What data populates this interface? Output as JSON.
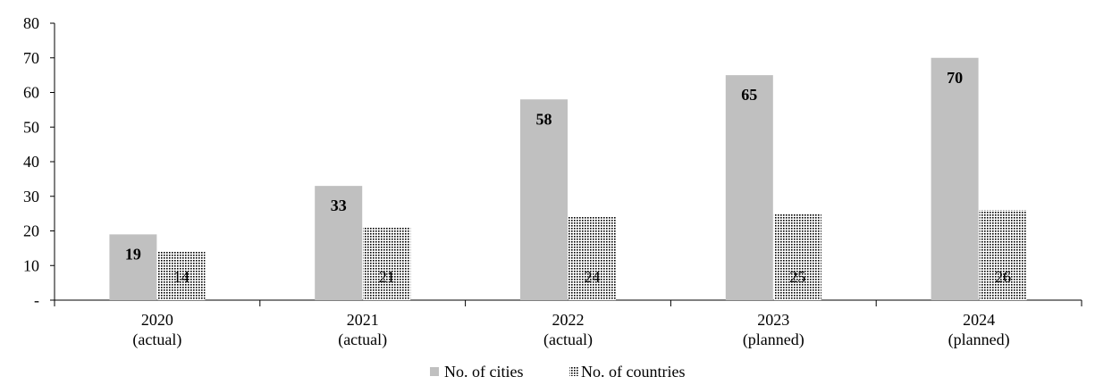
{
  "chart_data": {
    "type": "bar",
    "categories": [
      [
        "2020",
        "(actual)"
      ],
      [
        "2021",
        "(actual)"
      ],
      [
        "2022",
        "(actual)"
      ],
      [
        "2023",
        "(planned)"
      ],
      [
        "2024",
        "(planned)"
      ]
    ],
    "series": [
      {
        "name": "No. of cities",
        "values": [
          19,
          33,
          58,
          65,
          70
        ],
        "color": "#c0c0c0",
        "fill": "solid",
        "label_style": "bold"
      },
      {
        "name": "No. of countries",
        "values": [
          14,
          21,
          24,
          25,
          26
        ],
        "color": "#000000",
        "fill": "dotted",
        "label_style": "normal"
      }
    ],
    "y_ticks": [
      "-",
      "10",
      "20",
      "30",
      "40",
      "50",
      "60",
      "70",
      "80"
    ],
    "ylim": [
      0,
      80
    ],
    "title": "",
    "xlabel": "",
    "ylabel": "",
    "grid": false,
    "legend_position": "bottom-center"
  }
}
